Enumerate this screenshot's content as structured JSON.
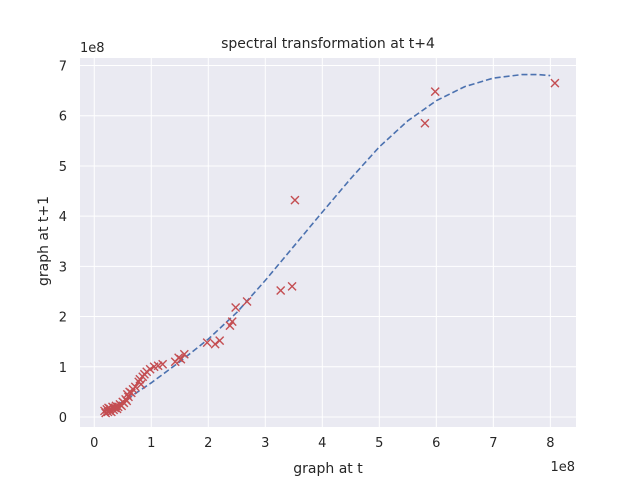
{
  "chart_data": {
    "type": "scatter",
    "title": "spectral transformation at t+4",
    "xlabel": "graph at t",
    "ylabel": "graph at t+1",
    "x_offset_label": "1e8",
    "y_offset_label": "1e8",
    "xlim": [
      -0.25,
      8.45
    ],
    "ylim": [
      -0.2,
      7.15
    ],
    "x_ticks": [
      0,
      1,
      2,
      3,
      4,
      5,
      6,
      7,
      8
    ],
    "y_ticks": [
      0,
      1,
      2,
      3,
      4,
      5,
      6,
      7
    ],
    "x_tick_labels": [
      "0",
      "1",
      "2",
      "3",
      "4",
      "5",
      "6",
      "7",
      "8"
    ],
    "y_tick_labels": [
      "0",
      "1",
      "2",
      "3",
      "4",
      "5",
      "6",
      "7"
    ],
    "grid": true,
    "background": "#eaeaf2",
    "grid_color": "#ffffff",
    "marker_color": "#c44e52",
    "line_color": "#4c72b0",
    "series": [
      {
        "kind": "scatter",
        "marker": "x",
        "points": [
          [
            0.18,
            0.12
          ],
          [
            0.2,
            0.08
          ],
          [
            0.22,
            0.15
          ],
          [
            0.24,
            0.1
          ],
          [
            0.25,
            0.18
          ],
          [
            0.27,
            0.12
          ],
          [
            0.28,
            0.16
          ],
          [
            0.3,
            0.1
          ],
          [
            0.32,
            0.2
          ],
          [
            0.34,
            0.14
          ],
          [
            0.36,
            0.18
          ],
          [
            0.38,
            0.22
          ],
          [
            0.4,
            0.16
          ],
          [
            0.42,
            0.2
          ],
          [
            0.45,
            0.25
          ],
          [
            0.48,
            0.22
          ],
          [
            0.5,
            0.3
          ],
          [
            0.52,
            0.28
          ],
          [
            0.55,
            0.35
          ],
          [
            0.57,
            0.32
          ],
          [
            0.58,
            0.45
          ],
          [
            0.6,
            0.4
          ],
          [
            0.62,
            0.5
          ],
          [
            0.65,
            0.48
          ],
          [
            0.68,
            0.55
          ],
          [
            0.72,
            0.6
          ],
          [
            0.78,
            0.7
          ],
          [
            0.8,
            0.75
          ],
          [
            0.82,
            0.65
          ],
          [
            0.85,
            0.8
          ],
          [
            0.88,
            0.85
          ],
          [
            0.92,
            0.9
          ],
          [
            0.98,
            0.95
          ],
          [
            1.05,
            1.0
          ],
          [
            1.12,
            1.02
          ],
          [
            1.2,
            1.05
          ],
          [
            1.42,
            1.1
          ],
          [
            1.48,
            1.18
          ],
          [
            1.52,
            1.15
          ],
          [
            1.58,
            1.25
          ],
          [
            1.98,
            1.48
          ],
          [
            2.12,
            1.45
          ],
          [
            2.2,
            1.52
          ],
          [
            2.38,
            1.82
          ],
          [
            2.42,
            1.9
          ],
          [
            2.48,
            2.18
          ],
          [
            2.68,
            2.3
          ],
          [
            3.27,
            2.52
          ],
          [
            3.47,
            2.6
          ],
          [
            3.52,
            4.32
          ],
          [
            5.8,
            5.85
          ],
          [
            5.98,
            6.48
          ],
          [
            8.08,
            6.65
          ]
        ]
      },
      {
        "kind": "line",
        "style": "dashed",
        "points": [
          [
            0.15,
            0.12
          ],
          [
            0.5,
            0.3
          ],
          [
            1.0,
            0.68
          ],
          [
            1.5,
            1.1
          ],
          [
            2.0,
            1.55
          ],
          [
            2.5,
            2.08
          ],
          [
            3.0,
            2.72
          ],
          [
            3.5,
            3.4
          ],
          [
            4.0,
            4.08
          ],
          [
            4.5,
            4.75
          ],
          [
            5.0,
            5.38
          ],
          [
            5.5,
            5.9
          ],
          [
            6.0,
            6.3
          ],
          [
            6.5,
            6.58
          ],
          [
            7.0,
            6.75
          ],
          [
            7.5,
            6.82
          ],
          [
            7.8,
            6.82
          ],
          [
            8.0,
            6.8
          ]
        ]
      }
    ]
  }
}
